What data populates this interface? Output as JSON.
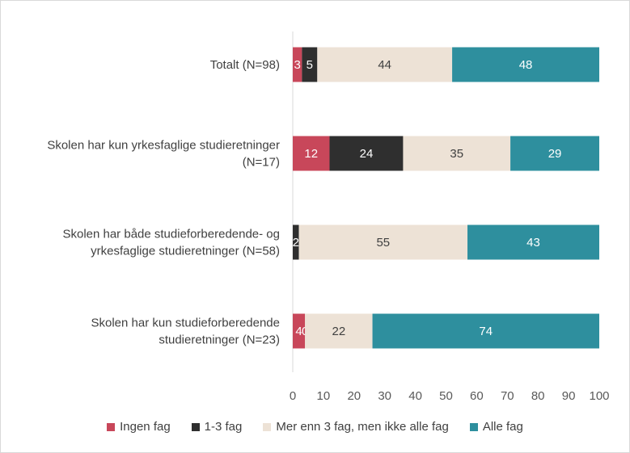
{
  "chart_data": {
    "type": "bar",
    "orientation": "horizontal",
    "stacked": true,
    "categories": [
      [
        "Totalt (N=98)"
      ],
      [
        "Skolen har kun yrkesfaglige studieretninger",
        "(N=17)"
      ],
      [
        "Skolen har både studieforberedende- og",
        "yrkesfaglige studieretninger (N=58)"
      ],
      [
        "Skolen har kun studieforberedende",
        "studieretninger (N=23)"
      ]
    ],
    "series": [
      {
        "name": "Ingen fag",
        "values": [
          3,
          12,
          0,
          4
        ],
        "color": "#c8475a",
        "label_color": "#ffffff",
        "labels": [
          "3",
          "12",
          "",
          "4"
        ]
      },
      {
        "name": "1-3 fag",
        "values": [
          5,
          24,
          2,
          0
        ],
        "color": "#2f2f2f",
        "label_color": "#ffffff",
        "labels": [
          "5",
          "24",
          "2",
          "0"
        ]
      },
      {
        "name": "Mer enn 3 fag, men ikke alle fag",
        "values": [
          44,
          35,
          55,
          22
        ],
        "color": "#ede2d6",
        "label_color": "#404040",
        "labels": [
          "44",
          "35",
          "55",
          "22"
        ]
      },
      {
        "name": "Alle fag",
        "values": [
          48,
          29,
          43,
          74
        ],
        "color": "#2e8f9e",
        "label_color": "#ffffff",
        "labels": [
          "48",
          "29",
          "43",
          "74"
        ]
      }
    ],
    "xlim": [
      0,
      100
    ],
    "xticks": [
      0,
      10,
      20,
      30,
      40,
      50,
      60,
      70,
      80,
      90,
      100
    ],
    "grid": false,
    "legend_position": "bottom"
  }
}
